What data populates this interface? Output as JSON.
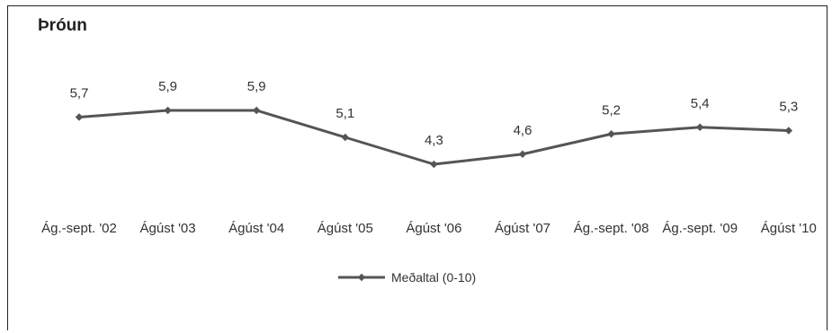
{
  "chart_data": {
    "type": "line",
    "title": "Þróun",
    "categories": [
      "Ág.-sept. '02",
      "Ágúst '03",
      "Ágúst '04",
      "Ágúst '05",
      "Ágúst '06",
      "Ágúst '07",
      "Ág.-sept. '08",
      "Ág.-sept. '09",
      "Ágúst '10"
    ],
    "series": [
      {
        "name": "Meðaltal (0-10)",
        "values": [
          5.7,
          5.9,
          5.9,
          5.1,
          4.3,
          4.6,
          5.2,
          5.4,
          5.3
        ],
        "labels": [
          "5,7",
          "5,9",
          "5,9",
          "5,1",
          "4,3",
          "4,6",
          "5,2",
          "5,4",
          "5,3"
        ],
        "color": "#555555"
      }
    ],
    "legend": "bottom-center",
    "grid": false
  }
}
